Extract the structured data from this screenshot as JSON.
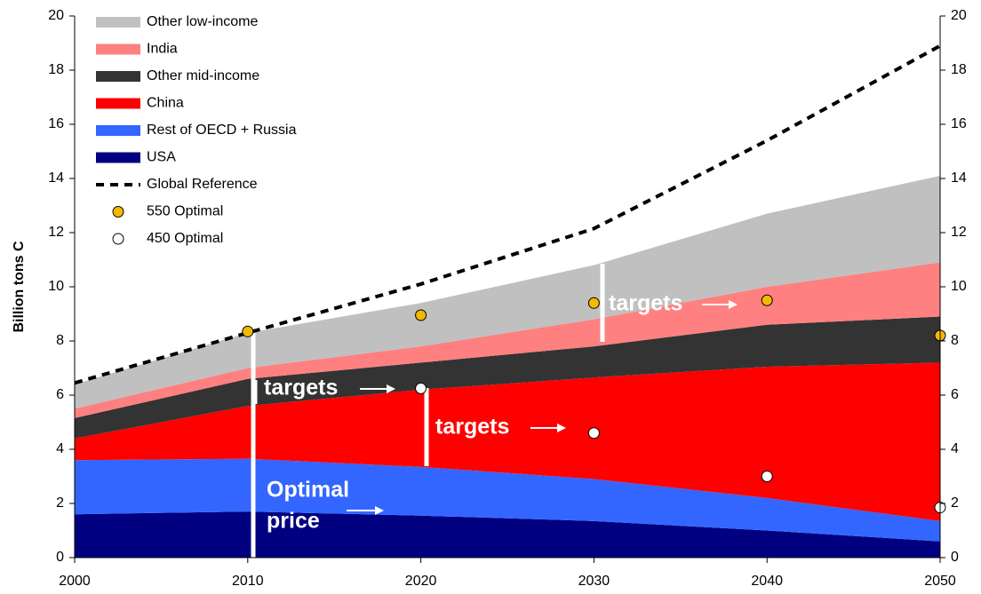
{
  "chart_data": {
    "type": "area",
    "stacked": true,
    "y_label": "Billion tons C",
    "x": [
      2000,
      2010,
      2020,
      2030,
      2040,
      2050
    ],
    "xlim": [
      2000,
      2050
    ],
    "xticks": [
      2000,
      2010,
      2020,
      2030,
      2040,
      2050
    ],
    "ylim": [
      0,
      20
    ],
    "yticks": [
      0,
      2,
      4,
      6,
      8,
      10,
      12,
      14,
      16,
      18,
      20
    ],
    "series": [
      {
        "name": "USA",
        "type": "area",
        "color": "#000080",
        "values": [
          1.6,
          1.7,
          1.55,
          1.35,
          1.0,
          0.6
        ]
      },
      {
        "name": "Rest of OECD + Russia",
        "type": "area",
        "color": "#3366ff",
        "values": [
          2.0,
          1.95,
          1.8,
          1.55,
          1.2,
          0.75
        ]
      },
      {
        "name": "China",
        "type": "area",
        "color": "#ff0000",
        "values": [
          0.8,
          1.95,
          2.85,
          3.75,
          4.85,
          5.85
        ]
      },
      {
        "name": "Other mid-income",
        "type": "area",
        "color": "#333333",
        "values": [
          0.75,
          1.0,
          1.0,
          1.15,
          1.55,
          1.7
        ]
      },
      {
        "name": "India",
        "type": "area",
        "color": "#ff8080",
        "values": [
          0.35,
          0.4,
          0.6,
          1.0,
          1.4,
          2.0
        ]
      },
      {
        "name": "Other low-income",
        "type": "area",
        "color": "#c0c0c0",
        "values": [
          0.9,
          1.3,
          1.6,
          2.0,
          2.7,
          3.2
        ]
      },
      {
        "name": "Global Reference",
        "type": "line",
        "color": "#000000",
        "values": [
          6.45,
          8.3,
          10.1,
          12.15,
          15.4,
          18.9
        ]
      },
      {
        "name": "550 Optimal",
        "type": "scatter",
        "color": "#f5b800",
        "values": [
          null,
          8.35,
          8.95,
          9.4,
          9.5,
          8.2
        ]
      },
      {
        "name": "450 Optimal",
        "type": "scatter",
        "color": "#ffffff",
        "values": [
          null,
          null,
          6.25,
          4.6,
          3.0,
          1.85
        ]
      }
    ],
    "annotations": [
      "targets",
      "targets",
      "targets",
      "Optimal",
      "price"
    ]
  }
}
